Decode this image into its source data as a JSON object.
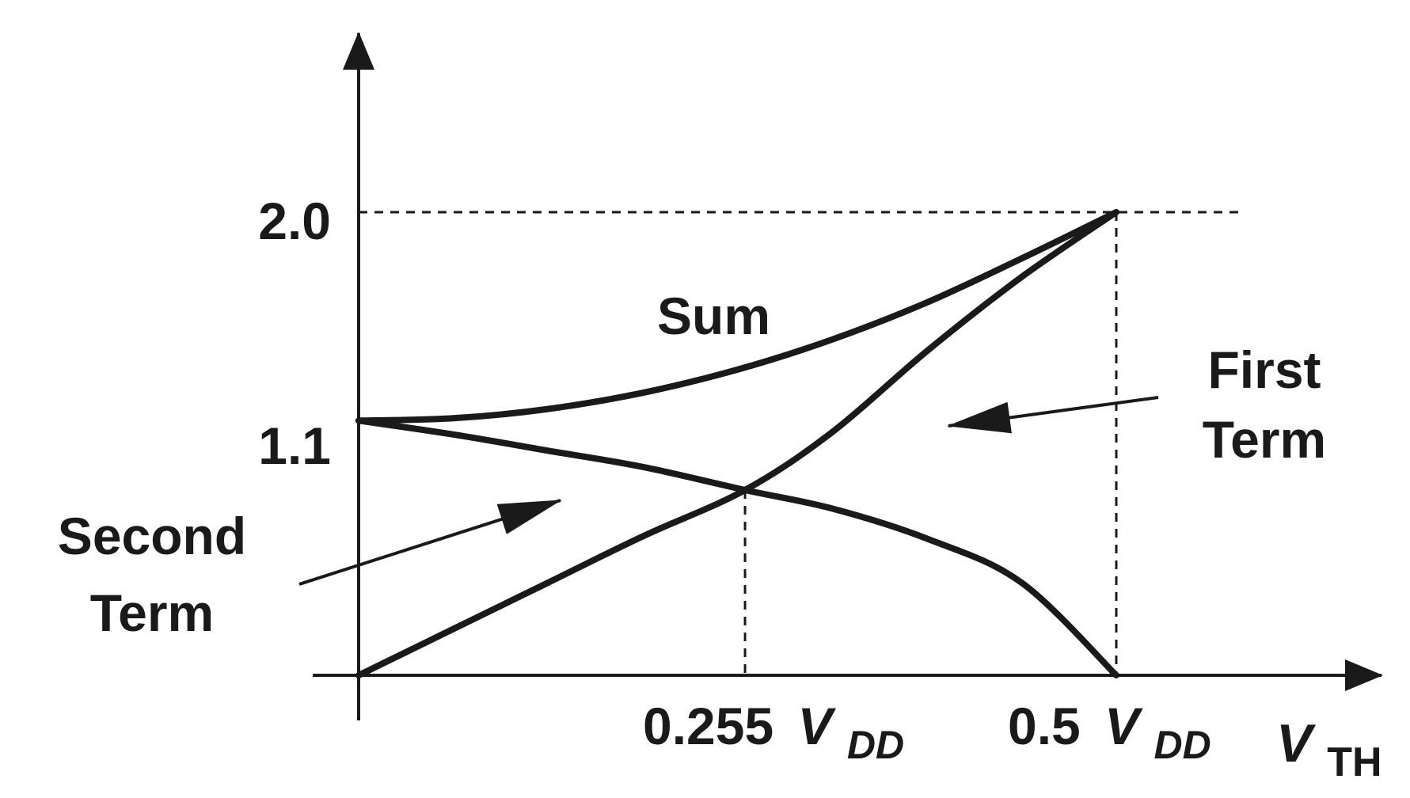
{
  "chart_data": {
    "type": "line",
    "title": "",
    "xlabel": {
      "base": "V",
      "sub": "TH"
    },
    "ylabel": "",
    "xlim": [
      0,
      0.5
    ],
    "ylim": [
      0,
      2.0
    ],
    "grid": false,
    "x_ticks": [
      {
        "value": 0.255,
        "prefix": "0.255",
        "var": "V",
        "sub": "DD"
      },
      {
        "value": 0.5,
        "prefix": "0.5",
        "var": "V",
        "sub": "DD"
      }
    ],
    "y_ticks": [
      {
        "value": 1.1,
        "label": "1.1"
      },
      {
        "value": 2.0,
        "label": "2.0"
      }
    ],
    "series": [
      {
        "name": "Sum",
        "x": [
          0,
          0.0625,
          0.125,
          0.1875,
          0.25,
          0.3125,
          0.375,
          0.4375,
          0.5
        ],
        "y": [
          1.1,
          1.11,
          1.15,
          1.22,
          1.32,
          1.45,
          1.61,
          1.8,
          2.0
        ]
      },
      {
        "name": "First Term",
        "x": [
          0,
          0.0625,
          0.125,
          0.1875,
          0.255,
          0.3125,
          0.375,
          0.4375,
          0.5
        ],
        "y": [
          0,
          0.2,
          0.4,
          0.6,
          0.8,
          1.05,
          1.4,
          1.72,
          2.0
        ]
      },
      {
        "name": "Second Term",
        "x": [
          0,
          0.0625,
          0.125,
          0.1875,
          0.255,
          0.3125,
          0.375,
          0.4375,
          0.5
        ],
        "y": [
          1.1,
          1.04,
          0.97,
          0.9,
          0.8,
          0.72,
          0.59,
          0.4,
          0
        ]
      }
    ],
    "annotations": {
      "sum_label": "Sum",
      "first_term_label": [
        "First",
        "Term"
      ],
      "second_term_label": [
        "Second",
        "Term"
      ]
    },
    "colors": {
      "curve": "#1a1a1a",
      "guide": "#1a1a1a"
    }
  }
}
